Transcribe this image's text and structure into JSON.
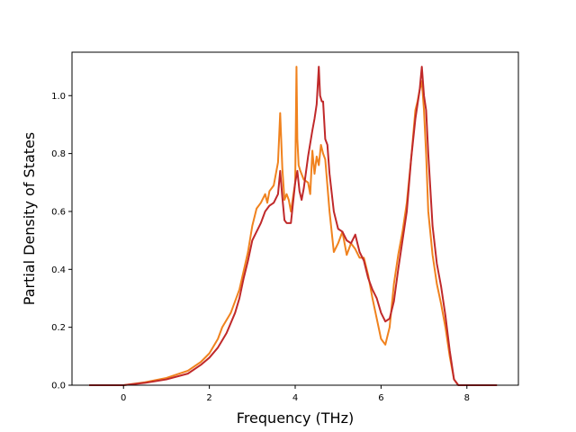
{
  "chart_data": {
    "type": "line",
    "xlabel": "Frequency (THz)",
    "ylabel": "Partial Density of States",
    "xlim": [
      -1.2,
      9.2
    ],
    "ylim": [
      0.0,
      1.15
    ],
    "xticks": [
      "0",
      "2",
      "4",
      "6",
      "8"
    ],
    "yticks": [
      "0.0",
      "0.2",
      "0.4",
      "0.6",
      "0.8",
      "1.0"
    ],
    "grid": false,
    "legend": "none",
    "series": [
      {
        "color": "#f0821e",
        "x": [
          -0.8,
          0.0,
          0.5,
          1.0,
          1.5,
          1.8,
          2.0,
          2.2,
          2.3,
          2.5,
          2.7,
          2.9,
          3.0,
          3.1,
          3.2,
          3.3,
          3.35,
          3.4,
          3.5,
          3.6,
          3.65,
          3.7,
          3.75,
          3.8,
          3.85,
          3.9,
          3.95,
          4.0,
          4.03,
          4.05,
          4.08,
          4.12,
          4.2,
          4.3,
          4.35,
          4.4,
          4.45,
          4.5,
          4.55,
          4.6,
          4.65,
          4.7,
          4.8,
          4.9,
          5.0,
          5.1,
          5.2,
          5.3,
          5.4,
          5.5,
          5.6,
          5.7,
          5.8,
          5.9,
          6.0,
          6.1,
          6.2,
          6.3,
          6.4,
          6.5,
          6.6,
          6.7,
          6.8,
          6.85,
          6.9,
          6.95,
          7.0,
          7.05,
          7.1,
          7.2,
          7.3,
          7.4,
          7.5,
          7.6,
          7.7,
          7.75,
          7.8,
          7.85,
          7.9,
          8.0,
          8.7
        ],
        "y": [
          0.0,
          0.0,
          0.01,
          0.025,
          0.05,
          0.08,
          0.11,
          0.16,
          0.2,
          0.25,
          0.33,
          0.46,
          0.55,
          0.61,
          0.63,
          0.66,
          0.63,
          0.67,
          0.69,
          0.77,
          0.94,
          0.75,
          0.64,
          0.66,
          0.64,
          0.6,
          0.65,
          0.7,
          1.1,
          0.85,
          0.76,
          0.74,
          0.71,
          0.7,
          0.66,
          0.81,
          0.73,
          0.79,
          0.76,
          0.83,
          0.8,
          0.78,
          0.6,
          0.46,
          0.49,
          0.53,
          0.45,
          0.49,
          0.47,
          0.44,
          0.44,
          0.38,
          0.3,
          0.23,
          0.16,
          0.14,
          0.2,
          0.35,
          0.45,
          0.53,
          0.63,
          0.78,
          0.95,
          0.98,
          1.02,
          1.05,
          0.95,
          0.8,
          0.6,
          0.45,
          0.35,
          0.28,
          0.2,
          0.1,
          0.02,
          0.01,
          0.0,
          0.0,
          0.0,
          0.0,
          0.0
        ]
      },
      {
        "color": "#c0292a",
        "x": [
          -0.8,
          0.0,
          0.5,
          1.0,
          1.5,
          1.8,
          2.0,
          2.2,
          2.4,
          2.6,
          2.7,
          2.8,
          2.9,
          3.0,
          3.1,
          3.2,
          3.25,
          3.3,
          3.4,
          3.5,
          3.6,
          3.65,
          3.7,
          3.75,
          3.8,
          3.9,
          4.0,
          4.05,
          4.1,
          4.15,
          4.2,
          4.3,
          4.4,
          4.45,
          4.5,
          4.55,
          4.58,
          4.62,
          4.65,
          4.7,
          4.75,
          4.8,
          4.9,
          5.0,
          5.1,
          5.2,
          5.3,
          5.4,
          5.45,
          5.5,
          5.6,
          5.7,
          5.8,
          5.9,
          6.0,
          6.1,
          6.2,
          6.3,
          6.4,
          6.5,
          6.6,
          6.7,
          6.8,
          6.85,
          6.9,
          6.95,
          7.0,
          7.05,
          7.1,
          7.2,
          7.3,
          7.4,
          7.5,
          7.6,
          7.7,
          7.75,
          7.8,
          7.85,
          7.9,
          8.0,
          8.7
        ],
        "y": [
          0.0,
          0.0,
          0.008,
          0.02,
          0.04,
          0.07,
          0.095,
          0.13,
          0.18,
          0.25,
          0.3,
          0.37,
          0.43,
          0.5,
          0.53,
          0.56,
          0.58,
          0.6,
          0.62,
          0.63,
          0.66,
          0.74,
          0.65,
          0.57,
          0.56,
          0.56,
          0.7,
          0.74,
          0.67,
          0.64,
          0.68,
          0.79,
          0.88,
          0.92,
          0.97,
          1.1,
          1.0,
          0.98,
          0.98,
          0.85,
          0.83,
          0.73,
          0.6,
          0.54,
          0.53,
          0.5,
          0.49,
          0.52,
          0.49,
          0.46,
          0.43,
          0.37,
          0.33,
          0.3,
          0.25,
          0.22,
          0.23,
          0.29,
          0.4,
          0.5,
          0.6,
          0.78,
          0.92,
          0.97,
          1.02,
          1.1,
          1.0,
          0.95,
          0.8,
          0.55,
          0.42,
          0.34,
          0.24,
          0.12,
          0.02,
          0.01,
          0.0,
          0.0,
          0.0,
          0.0,
          0.0
        ]
      }
    ]
  }
}
